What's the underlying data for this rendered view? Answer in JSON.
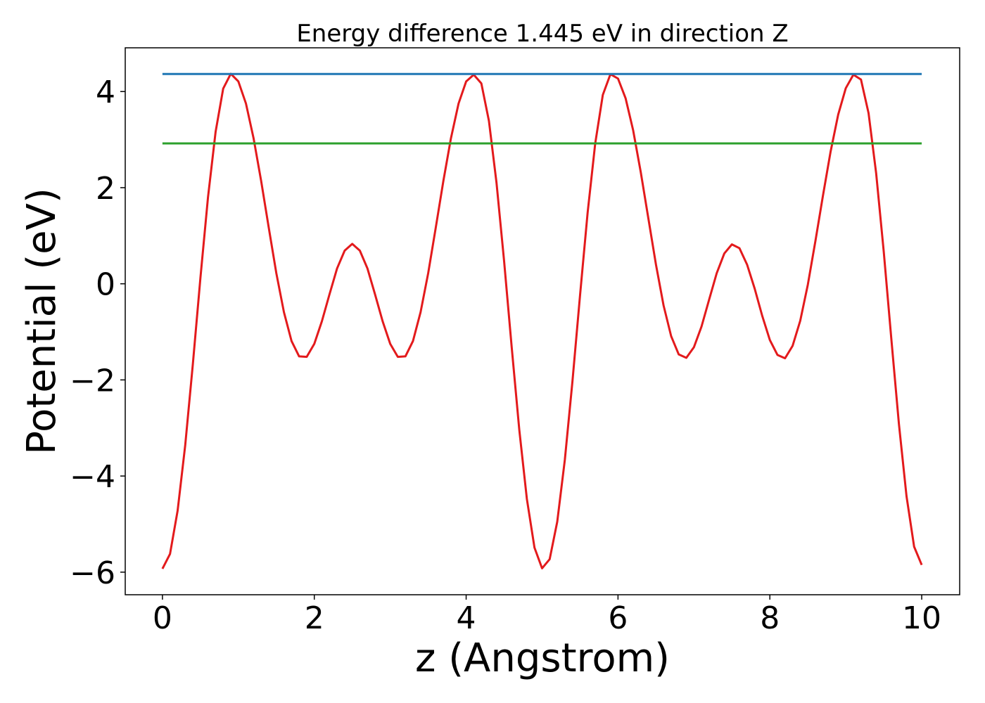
{
  "chart_data": {
    "type": "line",
    "title": "Energy difference 1.445 eV in direction Z",
    "xlabel": "z (Angstrom)",
    "ylabel": "Potential (eV)",
    "xlim": [
      -0.49,
      10.5
    ],
    "ylim": [
      -6.47,
      4.91
    ],
    "xticks": [
      0,
      2,
      4,
      6,
      8,
      10
    ],
    "yticks": [
      {
        "value": -6,
        "label": "−6"
      },
      {
        "value": -4,
        "label": "−4"
      },
      {
        "value": -2,
        "label": "−2"
      },
      0,
      2,
      4
    ],
    "grid": false,
    "series": [
      {
        "color": "#e31a1c",
        "x": [
          0,
          0.1,
          0.2,
          0.3,
          0.4,
          0.5,
          0.6,
          0.7,
          0.8,
          0.9,
          1.0,
          1.1,
          1.2,
          1.3,
          1.4,
          1.5,
          1.6,
          1.7,
          1.8,
          1.9,
          2.0,
          2.1,
          2.2,
          2.3,
          2.4,
          2.5,
          2.6,
          2.7,
          2.8,
          2.9,
          3.0,
          3.1,
          3.2,
          3.3,
          3.4,
          3.5,
          3.6,
          3.7,
          3.8,
          3.9,
          4.0,
          4.1,
          4.2,
          4.3,
          4.4,
          4.5,
          4.6,
          4.7,
          4.8,
          4.9,
          5.0,
          5.1,
          5.2,
          5.3,
          5.4,
          5.5,
          5.6,
          5.7,
          5.8,
          5.9,
          6.0,
          6.1,
          6.2,
          6.3,
          6.4,
          6.5,
          6.6,
          6.7,
          6.8,
          6.9,
          7.0,
          7.1,
          7.2,
          7.3,
          7.4,
          7.5,
          7.6,
          7.7,
          7.8,
          7.9,
          8.0,
          8.1,
          8.2,
          8.3,
          8.4,
          8.5,
          8.6,
          8.7,
          8.8,
          8.9,
          9.0,
          9.1,
          9.2,
          9.3,
          9.4,
          9.5,
          9.6,
          9.7,
          9.8,
          9.9,
          10.0
        ],
        "values": [
          -5.93,
          -5.62,
          -4.72,
          -3.36,
          -1.68,
          0.12,
          1.8,
          3.16,
          4.06,
          4.37,
          4.21,
          3.75,
          3.03,
          2.14,
          1.17,
          0.22,
          -0.59,
          -1.19,
          -1.51,
          -1.52,
          -1.25,
          -0.78,
          -0.22,
          0.32,
          0.69,
          0.83,
          0.69,
          0.32,
          -0.22,
          -0.78,
          -1.25,
          -1.52,
          -1.51,
          -1.19,
          -0.59,
          0.22,
          1.17,
          2.14,
          3.03,
          3.75,
          4.21,
          4.35,
          4.17,
          3.39,
          2.1,
          0.47,
          -1.32,
          -3.04,
          -4.48,
          -5.49,
          -5.92,
          -5.73,
          -4.95,
          -3.66,
          -2.03,
          -0.24,
          1.48,
          2.92,
          3.93,
          4.36,
          4.27,
          3.86,
          3.19,
          2.32,
          1.36,
          0.4,
          -0.45,
          -1.09,
          -1.47,
          -1.54,
          -1.32,
          -0.89,
          -0.33,
          0.22,
          0.63,
          0.82,
          0.74,
          0.4,
          -0.1,
          -0.67,
          -1.17,
          -1.48,
          -1.55,
          -1.29,
          -0.77,
          -0.02,
          0.89,
          1.84,
          2.75,
          3.52,
          4.07,
          4.35,
          4.25,
          3.55,
          2.3,
          0.67,
          -1.15,
          -2.92,
          -4.42,
          -5.47,
          -5.85
        ]
      },
      {
        "color": "#1f77b4",
        "x": [
          0,
          10
        ],
        "values": [
          4.365,
          4.365
        ]
      },
      {
        "color": "#2ca02c",
        "x": [
          0,
          10
        ],
        "values": [
          2.92,
          2.92
        ]
      }
    ]
  }
}
